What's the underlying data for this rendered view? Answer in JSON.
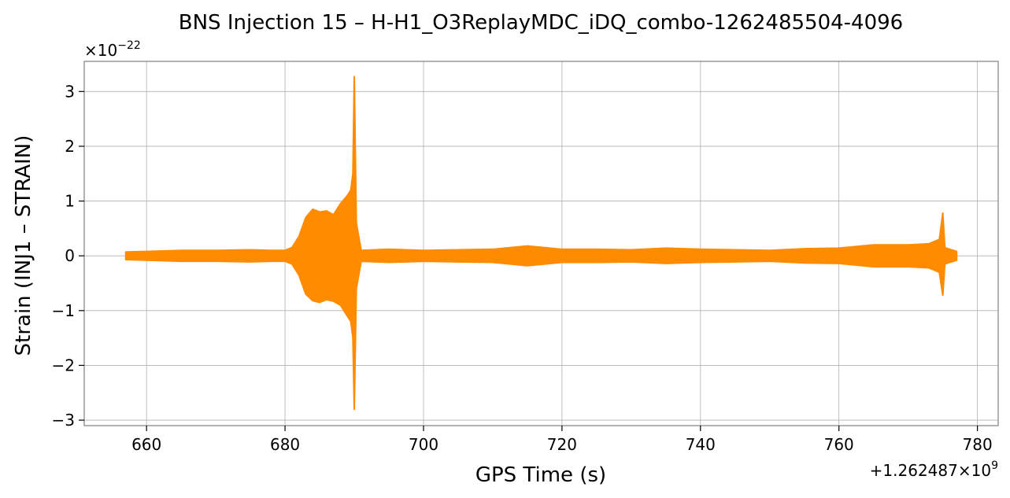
{
  "chart_data": {
    "type": "line",
    "title": "BNS Injection 15 – H-H1_O3ReplayMDC_iDQ_combo-1262485504-4096",
    "xlabel": "GPS Time (s)",
    "ylabel": "Strain (INJ1 – STRAIN)",
    "x_offset_label": "+1.262487×10",
    "x_offset_exponent": "9",
    "y_scale_label": "×10",
    "y_scale_exponent": "−22",
    "xlim": [
      651,
      783
    ],
    "ylim": [
      -3.1,
      3.55
    ],
    "xticks": [
      660,
      680,
      700,
      720,
      740,
      760,
      780
    ],
    "xtick_labels": [
      "660",
      "680",
      "700",
      "720",
      "740",
      "760",
      "780"
    ],
    "yticks": [
      -3,
      -2,
      -1,
      0,
      1,
      2,
      3
    ],
    "ytick_labels": [
      "−3",
      "−2",
      "−1",
      "0",
      "1",
      "2",
      "3"
    ],
    "grid": true,
    "series": [
      {
        "color": "#ff8c00",
        "x": [
          657,
          660,
          665,
          670,
          675,
          678,
          680,
          681,
          682,
          683,
          684,
          685,
          686,
          687,
          688,
          689,
          689.5,
          689.8,
          690.0,
          690.3,
          691,
          695,
          700,
          705,
          710,
          715,
          720,
          725,
          730,
          735,
          740,
          745,
          750,
          755,
          760,
          765,
          770,
          773,
          774.5,
          775.0,
          775.3,
          776,
          777
        ],
        "upper": [
          0.07,
          0.08,
          0.1,
          0.1,
          0.11,
          0.1,
          0.1,
          0.15,
          0.35,
          0.7,
          0.85,
          0.8,
          0.82,
          0.75,
          0.95,
          1.1,
          1.2,
          1.5,
          3.27,
          0.6,
          0.1,
          0.12,
          0.1,
          0.11,
          0.12,
          0.18,
          0.12,
          0.12,
          0.11,
          0.14,
          0.12,
          0.11,
          0.1,
          0.13,
          0.14,
          0.2,
          0.2,
          0.22,
          0.3,
          0.78,
          0.15,
          0.12,
          0.08
        ],
        "lower": [
          -0.07,
          -0.08,
          -0.1,
          -0.1,
          -0.11,
          -0.1,
          -0.1,
          -0.15,
          -0.35,
          -0.7,
          -0.82,
          -0.85,
          -0.8,
          -0.83,
          -0.9,
          -1.1,
          -1.2,
          -1.5,
          -2.8,
          -0.6,
          -0.1,
          -0.12,
          -0.1,
          -0.11,
          -0.12,
          -0.18,
          -0.12,
          -0.12,
          -0.11,
          -0.14,
          -0.12,
          -0.11,
          -0.1,
          -0.13,
          -0.14,
          -0.2,
          -0.2,
          -0.22,
          -0.3,
          -0.72,
          -0.15,
          -0.12,
          -0.08
        ]
      }
    ]
  }
}
